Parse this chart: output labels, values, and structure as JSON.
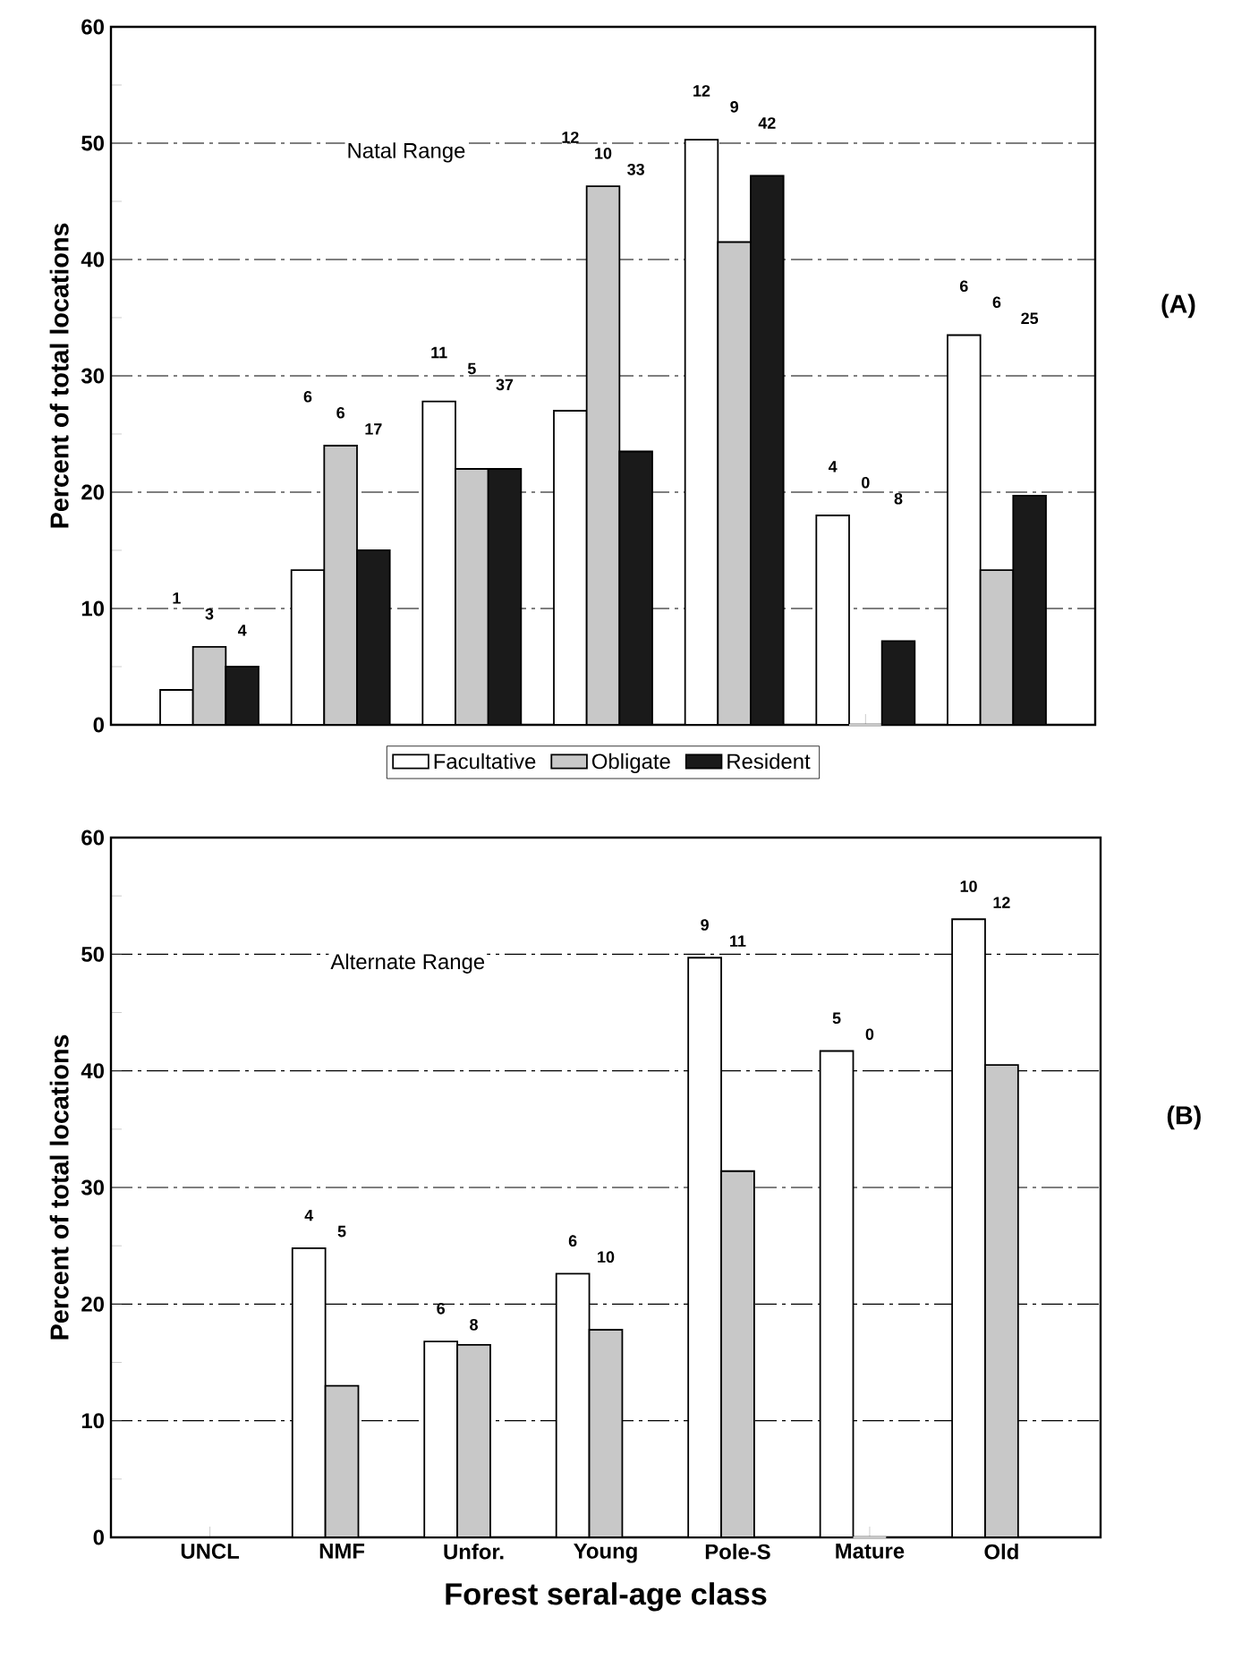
{
  "chart_data": [
    {
      "type": "bar",
      "ylabel": "Percent of total locations",
      "categories": [
        null,
        null,
        null,
        null,
        null,
        null,
        null
      ],
      "series": [
        {
          "name": "Facultative",
          "color": "#ffffff",
          "values": [
            3,
            13.3,
            27.8,
            27,
            50.3,
            18,
            33.5
          ]
        },
        {
          "name": "Obligate",
          "color": "#c8c8c8",
          "values": [
            6.7,
            24,
            22,
            46.3,
            41.5,
            0,
            13.3
          ]
        },
        {
          "name": "Resident",
          "color": "#1a1a1a",
          "values": [
            5,
            15,
            22,
            23.5,
            47.2,
            7.2,
            19.7
          ]
        }
      ],
      "annotations": [
        "Natal Range",
        "(A)",
        "1",
        "3",
        "4",
        "6",
        "6",
        "17",
        "11",
        "5",
        "37",
        "12",
        "10",
        "33",
        "12",
        "9",
        "42",
        "4",
        "0",
        "8",
        "6",
        "6",
        "25"
      ],
      "ylim": [
        0,
        60
      ],
      "yticks": [
        0,
        {
          "value": 5,
          "label": null
        },
        10,
        {
          "value": 15,
          "label": null
        },
        20,
        {
          "value": 25,
          "label": null
        },
        30,
        {
          "value": 35,
          "label": null
        },
        40,
        {
          "value": 45,
          "label": null
        },
        50,
        {
          "value": 55,
          "label": null
        },
        60
      ],
      "grid": "y",
      "legend": "bottom",
      "tick_labels": "y"
    },
    {
      "type": "bar",
      "ylabel": "Percent of total locations",
      "xlabel": "Forest seral-age class",
      "categories": [
        "UNCL",
        "NMF",
        "Unfor.",
        "Young",
        "Pole-S",
        "Mature",
        "Old"
      ],
      "series": [
        {
          "color": "#ffffff",
          "values": [
            null,
            24.8,
            16.8,
            22.6,
            49.7,
            41.7,
            53
          ]
        },
        {
          "color": "#c8c8c8",
          "values": [
            null,
            13,
            16.5,
            17.8,
            31.4,
            0,
            40.5
          ]
        }
      ],
      "annotations": [
        "Alternate Range",
        "(B)",
        "4",
        "5",
        "6",
        "8",
        "6",
        "10",
        "9",
        "11",
        "5",
        "0",
        "10",
        "12"
      ],
      "ylim": [
        0,
        60
      ],
      "yticks": [
        0,
        {
          "value": 5,
          "label": null
        },
        10,
        {
          "value": 15,
          "label": null
        },
        20,
        {
          "value": 25,
          "label": null
        },
        30,
        {
          "value": 35,
          "label": null
        },
        40,
        {
          "value": 45,
          "label": null
        },
        50,
        {
          "value": 55,
          "label": null
        },
        60
      ],
      "grid": "y",
      "legend": false
    }
  ]
}
